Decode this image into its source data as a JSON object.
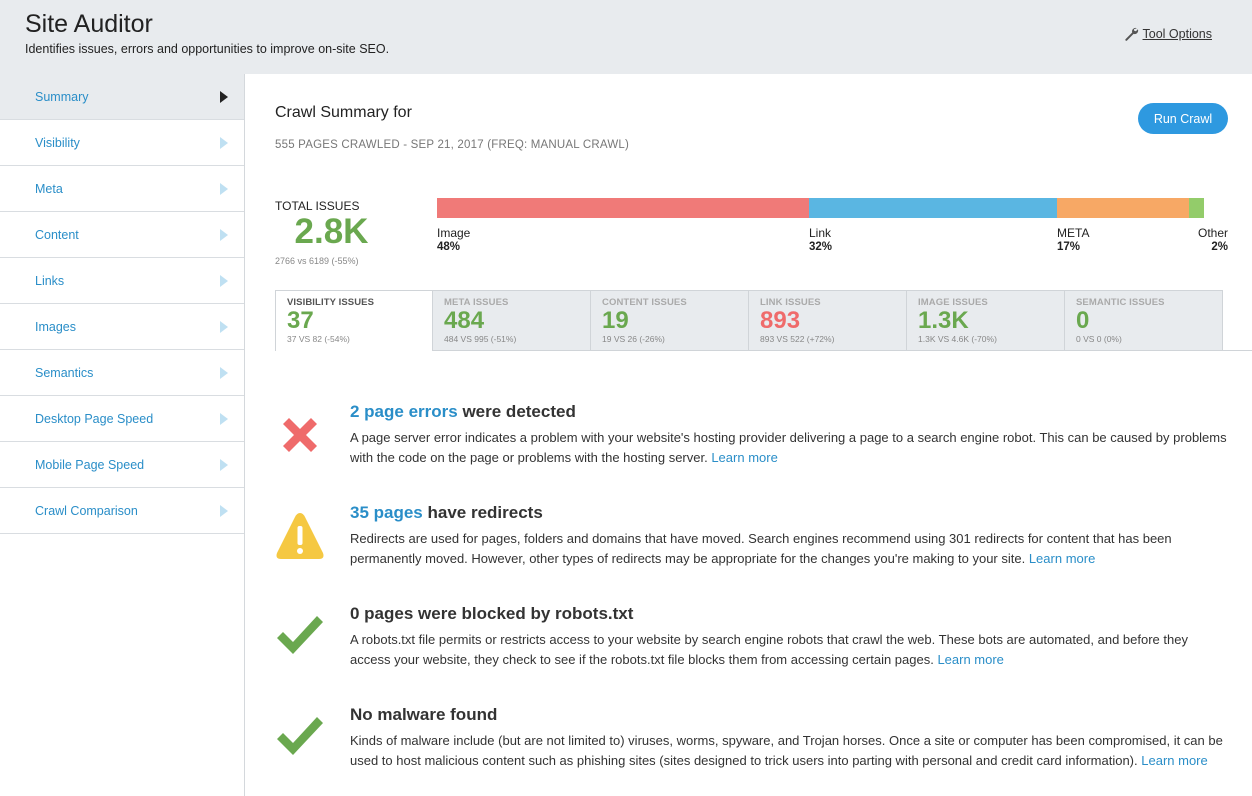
{
  "header": {
    "title": "Site Auditor",
    "subtitle": "Identifies issues, errors and opportunities to improve on-site SEO.",
    "tool_options": "Tool Options"
  },
  "sidebar": {
    "items": [
      {
        "label": "Summary",
        "active": true
      },
      {
        "label": "Visibility"
      },
      {
        "label": "Meta"
      },
      {
        "label": "Content"
      },
      {
        "label": "Links"
      },
      {
        "label": "Images"
      },
      {
        "label": "Semantics"
      },
      {
        "label": "Desktop Page Speed"
      },
      {
        "label": "Mobile Page Speed"
      },
      {
        "label": "Crawl Comparison"
      }
    ]
  },
  "main": {
    "title": "Crawl Summary for",
    "meta": "555 PAGES CRAWLED - SEP 21, 2017 (FREQ: MANUAL CRAWL)",
    "run_crawl": "Run Crawl",
    "total": {
      "label": "TOTAL ISSUES",
      "value": "2.8K",
      "compare": "2766 vs 6189 (-55%)"
    },
    "breakdown": [
      {
        "label": "Image",
        "pct": "48%",
        "value": 48,
        "color": "#f07a78"
      },
      {
        "label": "Link",
        "pct": "32%",
        "value": 32,
        "color": "#5ab6e2"
      },
      {
        "label": "META",
        "pct": "17%",
        "value": 17,
        "color": "#f7a865"
      },
      {
        "label": "Other",
        "pct": "2%",
        "value": 2,
        "color": "#93cc6a"
      }
    ],
    "tabs": [
      {
        "label": "VISIBILITY ISSUES",
        "value": "37",
        "compare": "37 VS 82 (-54%)",
        "color": "#6aa84f"
      },
      {
        "label": "META ISSUES",
        "value": "484",
        "compare": "484 VS 995 (-51%)",
        "color": "#6aa84f"
      },
      {
        "label": "CONTENT ISSUES",
        "value": "19",
        "compare": "19 VS 26 (-26%)",
        "color": "#6aa84f"
      },
      {
        "label": "LINK ISSUES",
        "value": "893",
        "compare": "893 VS 522 (+72%)",
        "color": "#ef6b6b"
      },
      {
        "label": "IMAGE ISSUES",
        "value": "1.3K",
        "compare": "1.3K VS 4.6K (-70%)",
        "color": "#6aa84f"
      },
      {
        "label": "SEMANTIC ISSUES",
        "value": "0",
        "compare": "0 VS 0 (0%)",
        "color": "#6aa84f"
      }
    ],
    "issues": [
      {
        "icon": "error-x-icon",
        "highlight": "2 page errors",
        "heading_rest": " were detected",
        "desc": "A page server error indicates a problem with your website's hosting provider delivering a page to a search engine robot. This can be caused by problems with the code on the page or problems with the hosting server. ",
        "link": "Learn more"
      },
      {
        "icon": "warning-icon",
        "highlight": "35 pages",
        "heading_rest": " have redirects",
        "desc": "Redirects are used for pages, folders and domains that have moved. Search engines recommend using 301 redirects for content that has been permanently moved. However, other types of redirects may be appropriate for the changes you're making to your site. ",
        "link": "Learn more"
      },
      {
        "icon": "checkmark-icon",
        "highlight": "",
        "heading_rest": "0 pages were blocked by robots.txt",
        "desc": "A robots.txt file permits or restricts access to your website by search engine robots that crawl the web. These bots are automated, and before they access your website, they check to see if the robots.txt file blocks them from accessing certain pages. ",
        "link": "Learn more"
      },
      {
        "icon": "checkmark-icon",
        "highlight": "",
        "heading_rest": "No malware found",
        "desc": "Kinds of malware include (but are not limited to) viruses, worms, spyware, and Trojan horses. Once a site or computer has been compromised, it can be used to host malicious content such as phishing sites (sites designed to trick users into parting with personal and credit card information). ",
        "link": "Learn more"
      }
    ]
  }
}
